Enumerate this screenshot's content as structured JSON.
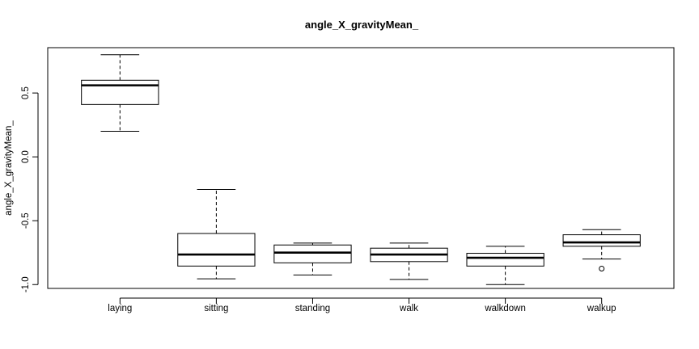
{
  "chart_data": {
    "type": "boxplot",
    "title": "angle_X_gravityMean_",
    "xlabel": "",
    "ylabel": "angle_X_gravityMean_",
    "ylim": [
      -1.03,
      0.855
    ],
    "yticks": [
      -1.0,
      -0.5,
      0.0,
      0.5
    ],
    "ytick_labels": [
      "-1.0",
      "-0.5",
      "0.0",
      "0.5"
    ],
    "categories": [
      "laying",
      "sitting",
      "standing",
      "walk",
      "walkdown",
      "walkup"
    ],
    "boxes": [
      {
        "category": "laying",
        "whisker_low": 0.2,
        "q1": 0.41,
        "median": 0.56,
        "q3": 0.6,
        "whisker_high": 0.8,
        "outliers": []
      },
      {
        "category": "sitting",
        "whisker_low": -0.955,
        "q1": -0.855,
        "median": -0.765,
        "q3": -0.6,
        "whisker_high": -0.255,
        "outliers": []
      },
      {
        "category": "standing",
        "whisker_low": -0.925,
        "q1": -0.83,
        "median": -0.75,
        "q3": -0.69,
        "whisker_high": -0.675,
        "outliers": []
      },
      {
        "category": "walk",
        "whisker_low": -0.96,
        "q1": -0.82,
        "median": -0.765,
        "q3": -0.715,
        "whisker_high": -0.675,
        "outliers": []
      },
      {
        "category": "walkdown",
        "whisker_low": -1.0,
        "q1": -0.855,
        "median": -0.79,
        "q3": -0.755,
        "whisker_high": -0.7,
        "outliers": []
      },
      {
        "category": "walkup",
        "whisker_low": -0.8,
        "q1": -0.7,
        "median": -0.67,
        "q3": -0.61,
        "whisker_high": -0.57,
        "outliers": [
          -0.875
        ]
      }
    ],
    "grid": false,
    "legend": "none"
  }
}
